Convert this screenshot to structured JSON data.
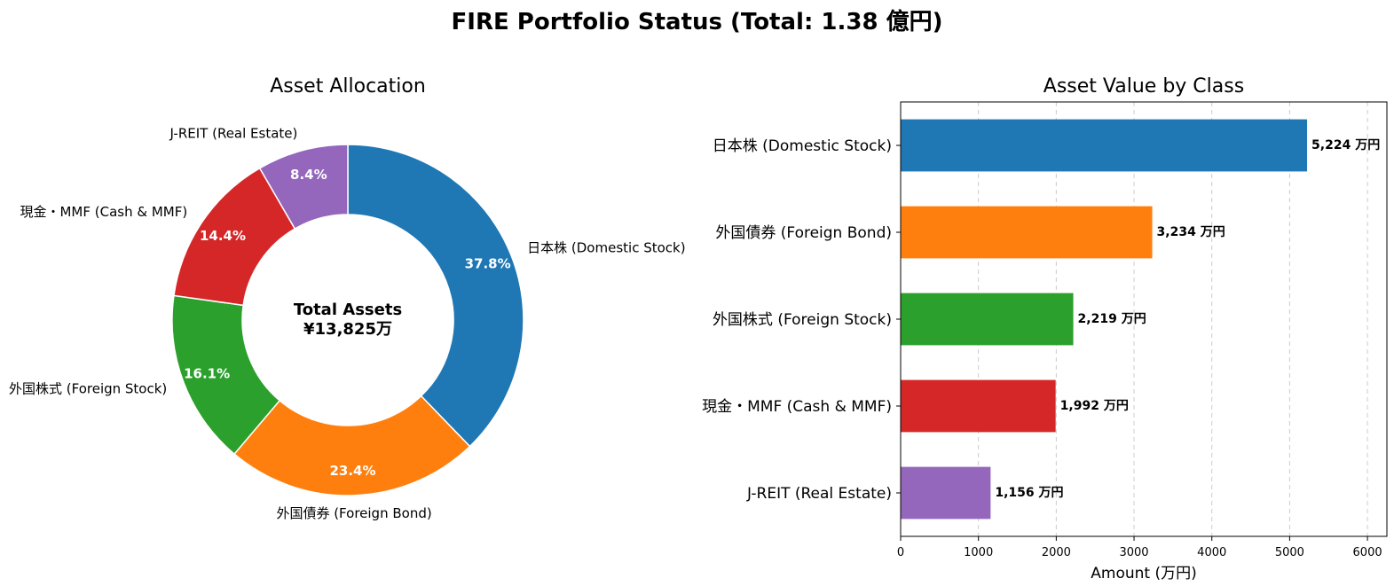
{
  "title": "FIRE Portfolio Status (Total: 1.38 億円)",
  "colors": {
    "domestic_stock": "#1f77b4",
    "foreign_bond": "#ff7f0e",
    "foreign_stock": "#2ca02c",
    "cash_mmf": "#d62728",
    "jreit": "#9467bd"
  },
  "chart_data": [
    {
      "type": "pie",
      "title": "Asset Allocation",
      "donut": true,
      "center_text": [
        "Total Assets",
        "¥13,825万"
      ],
      "slices": [
        {
          "label": "日本株 (Domestic Stock)",
          "value": 5224,
          "pct_label": "37.8%",
          "color": "#1f77b4"
        },
        {
          "label": "外国債券 (Foreign Bond)",
          "value": 3234,
          "pct_label": "23.4%",
          "color": "#ff7f0e"
        },
        {
          "label": "外国株式 (Foreign Stock)",
          "value": 2219,
          "pct_label": "16.1%",
          "color": "#2ca02c"
        },
        {
          "label": "現金・MMF (Cash & MMF)",
          "value": 1992,
          "pct_label": "14.4%",
          "color": "#d62728"
        },
        {
          "label": "J-REIT (Real Estate)",
          "value": 1156,
          "pct_label": "8.4%",
          "color": "#9467bd"
        }
      ]
    },
    {
      "type": "bar",
      "orientation": "horizontal",
      "title": "Asset Value by Class",
      "categories": [
        "日本株 (Domestic Stock)",
        "外国債券 (Foreign Bond)",
        "外国株式 (Foreign Stock)",
        "現金・MMF (Cash & MMF)",
        "J-REIT (Real Estate)"
      ],
      "values": [
        5224,
        3234,
        2219,
        1992,
        1156
      ],
      "value_labels": [
        "5,224 万円",
        "3,234 万円",
        "2,219 万円",
        "1,992 万円",
        "1,156 万円"
      ],
      "colors": [
        "#1f77b4",
        "#ff7f0e",
        "#2ca02c",
        "#d62728",
        "#9467bd"
      ],
      "xlabel": "Amount (万円)",
      "xlim": [
        0,
        6250
      ],
      "xticks": [
        0,
        1000,
        2000,
        3000,
        4000,
        5000,
        6000
      ],
      "grid": "x-dashed"
    }
  ]
}
